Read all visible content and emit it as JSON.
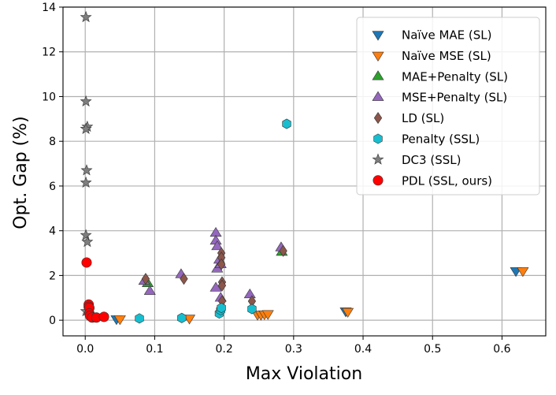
{
  "chart_data": {
    "type": "scatter",
    "title": "",
    "xlabel": "Max Violation",
    "ylabel": "Opt. Gap (%)",
    "xlim": [
      -0.032,
      0.663
    ],
    "ylim": [
      -0.7,
      14.0
    ],
    "xticks": [
      0.0,
      0.1,
      0.2,
      0.3,
      0.4,
      0.5,
      0.6
    ],
    "xtick_labels": [
      "0.0",
      "0.1",
      "0.2",
      "0.3",
      "0.4",
      "0.5",
      "0.6"
    ],
    "yticks": [
      0,
      2,
      4,
      6,
      8,
      10,
      12,
      14
    ],
    "ytick_labels": [
      "0",
      "2",
      "4",
      "6",
      "8",
      "10",
      "12",
      "14"
    ],
    "grid": true,
    "legend_position": "top-right",
    "series": [
      {
        "name": "Naïve MAE (SL)",
        "marker": "triangle-down",
        "color": "#1f77b4",
        "points": [
          [
            0.045,
            0.05
          ],
          [
            0.62,
            2.2
          ],
          [
            0.375,
            0.4
          ]
        ]
      },
      {
        "name": "Naïve MSE (SL)",
        "marker": "triangle-down",
        "color": "#ff7f0e",
        "points": [
          [
            0.05,
            0.05
          ],
          [
            0.15,
            0.08
          ],
          [
            0.63,
            2.2
          ],
          [
            0.378,
            0.38
          ],
          [
            0.248,
            0.25
          ],
          [
            0.253,
            0.25
          ],
          [
            0.258,
            0.27
          ],
          [
            0.263,
            0.28
          ]
        ]
      },
      {
        "name": "MAE+Penalty (SL)",
        "marker": "triangle-up",
        "color": "#2ca02c",
        "points": [
          [
            0.09,
            1.65
          ],
          [
            0.283,
            3.05
          ]
        ]
      },
      {
        "name": "MSE+Penalty (SL)",
        "marker": "triangle-up",
        "color": "#9467bd",
        "points": [
          [
            0.188,
            3.9
          ],
          [
            0.188,
            3.55
          ],
          [
            0.19,
            3.3
          ],
          [
            0.19,
            2.3
          ],
          [
            0.188,
            1.45
          ],
          [
            0.193,
            2.7
          ],
          [
            0.195,
            2.5
          ],
          [
            0.138,
            2.05
          ],
          [
            0.093,
            1.3
          ],
          [
            0.085,
            1.75
          ],
          [
            0.237,
            1.15
          ],
          [
            0.282,
            3.25
          ],
          [
            0.195,
            1.0
          ]
        ]
      },
      {
        "name": "LD (SL)",
        "marker": "diamond",
        "color": "#8c564b",
        "points": [
          [
            0.087,
            1.85
          ],
          [
            0.142,
            1.85
          ],
          [
            0.196,
            3.0
          ],
          [
            0.196,
            2.8
          ],
          [
            0.196,
            2.5
          ],
          [
            0.197,
            1.7
          ],
          [
            0.197,
            1.55
          ],
          [
            0.197,
            0.85
          ],
          [
            0.24,
            0.85
          ],
          [
            0.285,
            3.1
          ]
        ]
      },
      {
        "name": "Penalty (SSL)",
        "marker": "hexagon",
        "color": "#17becf",
        "points": [
          [
            0.078,
            0.08
          ],
          [
            0.139,
            0.1
          ],
          [
            0.193,
            0.3
          ],
          [
            0.195,
            0.45
          ],
          [
            0.196,
            0.55
          ],
          [
            0.24,
            0.5
          ],
          [
            0.29,
            8.78
          ]
        ]
      },
      {
        "name": "DC3 (SSL)",
        "marker": "star",
        "color": "#7f7f7f",
        "points": [
          [
            0.001,
            13.55
          ],
          [
            0.001,
            9.78
          ],
          [
            0.003,
            8.65
          ],
          [
            0.001,
            8.55
          ],
          [
            0.002,
            6.7
          ],
          [
            0.001,
            6.15
          ],
          [
            0.001,
            3.8
          ],
          [
            0.003,
            3.5
          ],
          [
            0.001,
            0.4
          ]
        ]
      },
      {
        "name": "PDL (SSL, ours)",
        "marker": "circle",
        "color": "#ff0000",
        "points": [
          [
            0.002,
            2.58
          ],
          [
            0.005,
            0.7
          ],
          [
            0.005,
            0.6
          ],
          [
            0.006,
            0.55
          ],
          [
            0.006,
            0.3
          ],
          [
            0.007,
            0.2
          ],
          [
            0.01,
            0.12
          ],
          [
            0.016,
            0.12
          ],
          [
            0.027,
            0.15
          ]
        ]
      }
    ]
  }
}
